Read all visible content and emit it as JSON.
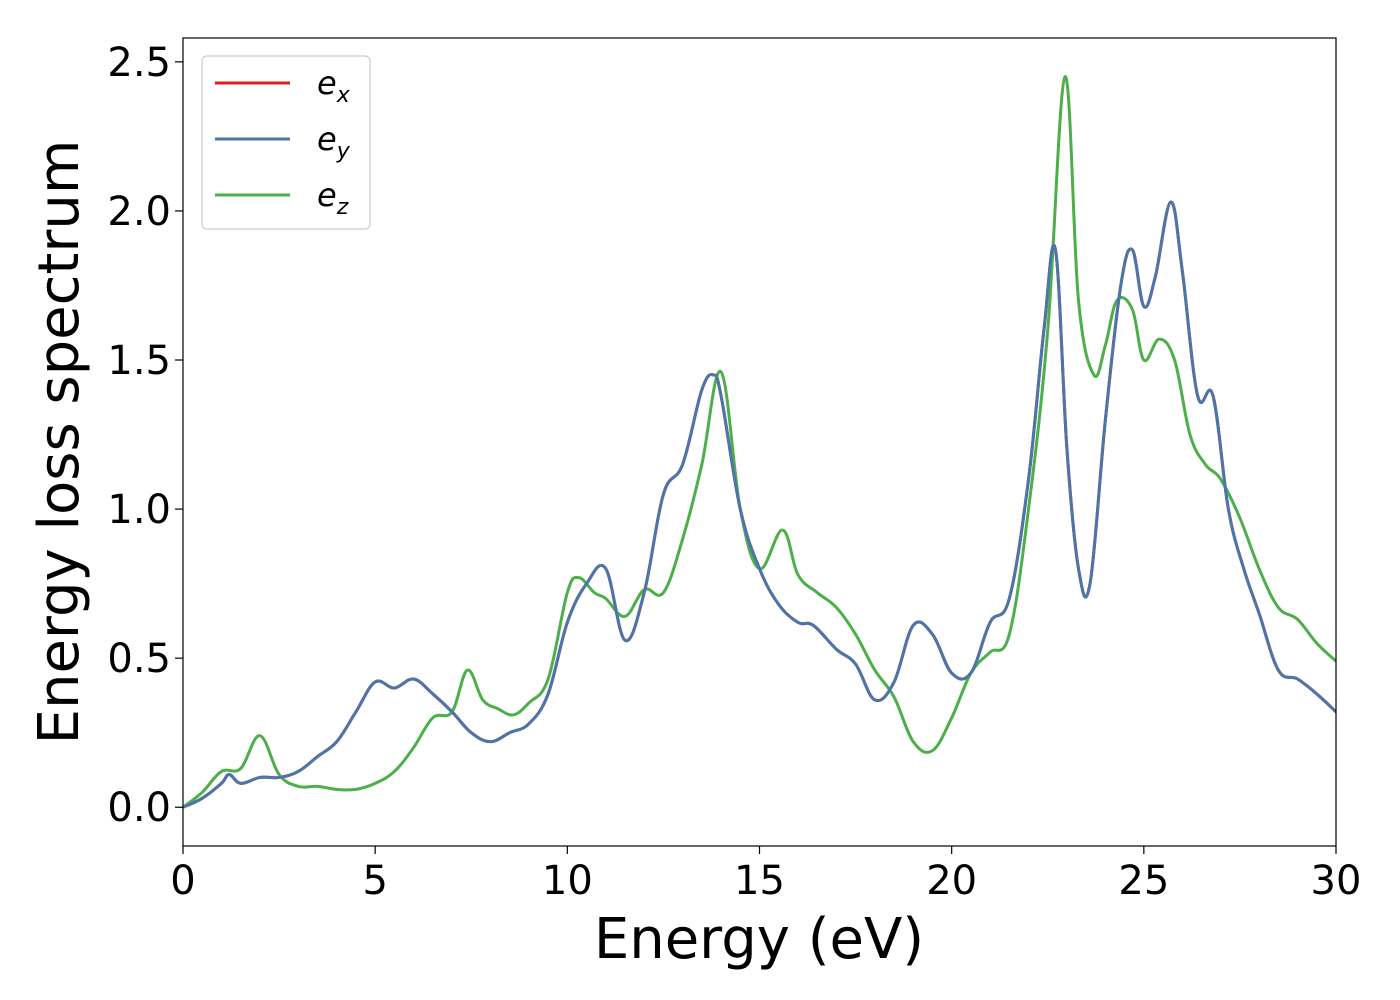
{
  "chart_data": {
    "type": "line",
    "xlabel": "Energy (eV)",
    "ylabel": "Energy loss spectrum",
    "xlim": [
      0,
      30
    ],
    "ylim": [
      -0.13,
      2.58
    ],
    "xticks": [
      0,
      5,
      10,
      15,
      20,
      25,
      30
    ],
    "xtick_labels": [
      "0",
      "5",
      "10",
      "15",
      "20",
      "25",
      "30"
    ],
    "yticks": [
      0.0,
      0.5,
      1.0,
      1.5,
      2.0,
      2.5
    ],
    "ytick_labels": [
      "0.0",
      "0.5",
      "1.0",
      "1.5",
      "2.0",
      "2.5"
    ],
    "grid": false,
    "legend_position": "top-left",
    "series": [
      {
        "name": "e",
        "subscript": "x",
        "color": "#e41a1c",
        "x": [
          0,
          0.5,
          1.0,
          1.2,
          1.5,
          2.0,
          2.5,
          3.0,
          3.5,
          4.0,
          4.5,
          5.0,
          5.5,
          6.0,
          6.5,
          7.0,
          7.5,
          8.0,
          8.5,
          9.0,
          9.5,
          10.0,
          10.5,
          11.0,
          11.5,
          12.0,
          12.5,
          13.0,
          13.5,
          13.8,
          14.0,
          14.5,
          15.0,
          15.5,
          16.0,
          16.4,
          17.0,
          17.5,
          18.0,
          18.5,
          19.0,
          19.5,
          20.0,
          20.5,
          21.0,
          21.5,
          22.0,
          22.4,
          22.7,
          23.0,
          23.3,
          23.6,
          24.0,
          24.4,
          24.7,
          25.0,
          25.3,
          25.7,
          26.0,
          26.4,
          26.8,
          27.2,
          27.6,
          28.0,
          28.5,
          29.0,
          29.5,
          30.0
        ],
        "y": [
          0,
          0.03,
          0.08,
          0.11,
          0.08,
          0.1,
          0.1,
          0.12,
          0.17,
          0.22,
          0.32,
          0.42,
          0.4,
          0.43,
          0.38,
          0.32,
          0.25,
          0.22,
          0.25,
          0.28,
          0.38,
          0.62,
          0.75,
          0.8,
          0.56,
          0.72,
          1.05,
          1.15,
          1.4,
          1.45,
          1.38,
          1.0,
          0.8,
          0.68,
          0.62,
          0.61,
          0.53,
          0.48,
          0.36,
          0.42,
          0.61,
          0.58,
          0.45,
          0.45,
          0.62,
          0.7,
          1.1,
          1.6,
          1.87,
          1.2,
          0.8,
          0.75,
          1.3,
          1.75,
          1.87,
          1.68,
          1.78,
          2.03,
          1.8,
          1.38,
          1.38,
          1.0,
          0.8,
          0.65,
          0.46,
          0.43,
          0.38,
          0.32
        ]
      },
      {
        "name": "e",
        "subscript": "y",
        "color": "#4a76aa",
        "x": [
          0,
          0.5,
          1.0,
          1.2,
          1.5,
          2.0,
          2.5,
          3.0,
          3.5,
          4.0,
          4.5,
          5.0,
          5.5,
          6.0,
          6.5,
          7.0,
          7.5,
          8.0,
          8.5,
          9.0,
          9.5,
          10.0,
          10.5,
          11.0,
          11.5,
          12.0,
          12.5,
          13.0,
          13.5,
          13.8,
          14.0,
          14.5,
          15.0,
          15.5,
          16.0,
          16.4,
          17.0,
          17.5,
          18.0,
          18.5,
          19.0,
          19.5,
          20.0,
          20.5,
          21.0,
          21.5,
          22.0,
          22.4,
          22.7,
          23.0,
          23.3,
          23.6,
          24.0,
          24.4,
          24.7,
          25.0,
          25.3,
          25.7,
          26.0,
          26.4,
          26.8,
          27.2,
          27.6,
          28.0,
          28.5,
          29.0,
          29.5,
          30.0
        ],
        "y": [
          0,
          0.03,
          0.08,
          0.11,
          0.08,
          0.1,
          0.1,
          0.12,
          0.17,
          0.22,
          0.32,
          0.42,
          0.4,
          0.43,
          0.38,
          0.32,
          0.25,
          0.22,
          0.25,
          0.28,
          0.38,
          0.62,
          0.75,
          0.8,
          0.56,
          0.72,
          1.05,
          1.15,
          1.4,
          1.45,
          1.38,
          1.0,
          0.8,
          0.68,
          0.62,
          0.61,
          0.53,
          0.48,
          0.36,
          0.42,
          0.61,
          0.58,
          0.45,
          0.45,
          0.62,
          0.7,
          1.1,
          1.6,
          1.87,
          1.2,
          0.8,
          0.75,
          1.3,
          1.75,
          1.87,
          1.68,
          1.78,
          2.03,
          1.8,
          1.38,
          1.38,
          1.0,
          0.8,
          0.65,
          0.46,
          0.43,
          0.38,
          0.32
        ]
      },
      {
        "name": "e",
        "subscript": "z",
        "color": "#4daf4a",
        "x": [
          0,
          0.5,
          1.0,
          1.5,
          2.0,
          2.5,
          3.0,
          3.5,
          4.0,
          4.5,
          5.0,
          5.5,
          6.0,
          6.5,
          7.0,
          7.4,
          7.8,
          8.2,
          8.6,
          9.0,
          9.5,
          10.0,
          10.3,
          10.7,
          11.0,
          11.5,
          12.0,
          12.5,
          13.0,
          13.5,
          14.0,
          14.5,
          15.0,
          15.6,
          16.0,
          16.5,
          17.0,
          17.5,
          18.0,
          18.5,
          19.0,
          19.5,
          20.0,
          20.5,
          21.0,
          21.5,
          22.0,
          22.5,
          22.95,
          23.3,
          23.7,
          24.0,
          24.3,
          24.7,
          25.0,
          25.4,
          25.8,
          26.2,
          26.6,
          27.0,
          27.5,
          28.0,
          28.5,
          29.0,
          29.5,
          30.0
        ],
        "y": [
          0,
          0.05,
          0.12,
          0.13,
          0.24,
          0.11,
          0.07,
          0.07,
          0.06,
          0.06,
          0.08,
          0.12,
          0.2,
          0.3,
          0.32,
          0.46,
          0.36,
          0.33,
          0.31,
          0.35,
          0.43,
          0.72,
          0.77,
          0.72,
          0.7,
          0.64,
          0.73,
          0.72,
          0.9,
          1.15,
          1.46,
          1.0,
          0.8,
          0.93,
          0.78,
          0.72,
          0.67,
          0.58,
          0.46,
          0.37,
          0.22,
          0.19,
          0.3,
          0.45,
          0.52,
          0.58,
          1.0,
          1.6,
          2.45,
          1.7,
          1.45,
          1.55,
          1.7,
          1.67,
          1.5,
          1.57,
          1.5,
          1.25,
          1.15,
          1.1,
          0.97,
          0.8,
          0.67,
          0.63,
          0.55,
          0.49
        ]
      }
    ]
  }
}
